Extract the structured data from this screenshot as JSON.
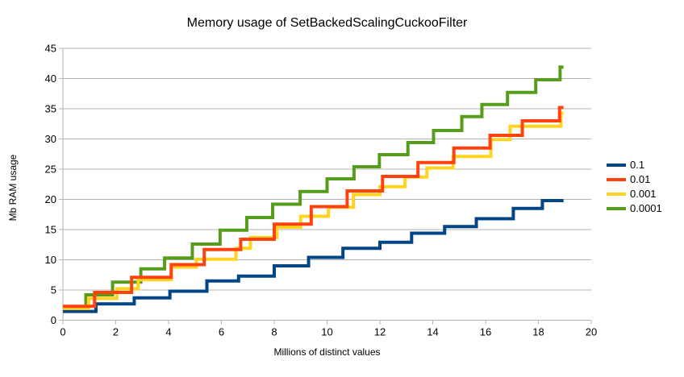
{
  "chart_data": {
    "type": "line",
    "step_style": "staircase",
    "title": "Memory usage of SetBackedScalingCuckooFilter",
    "xlabel": "Millions of distinct values",
    "ylabel": "Mb RAM usage",
    "xlim": [
      0,
      20
    ],
    "ylim": [
      0,
      45
    ],
    "x_ticks": [
      0,
      2,
      4,
      6,
      8,
      10,
      12,
      14,
      16,
      18,
      20
    ],
    "y_ticks": [
      0,
      5,
      10,
      15,
      20,
      25,
      30,
      35,
      40,
      45
    ],
    "grid": "horizontal-only",
    "axis_color": "#b3b3b3",
    "legend_position": "right",
    "x_end": 18.95,
    "series": [
      {
        "name": "0.1",
        "color": "#004586",
        "steps": [
          [
            0,
            1.45
          ],
          [
            1.25,
            2.7
          ],
          [
            2.7,
            3.7
          ],
          [
            4.05,
            4.8
          ],
          [
            5.45,
            6.5
          ],
          [
            6.65,
            7.3
          ],
          [
            8.0,
            9.0
          ],
          [
            9.3,
            10.4
          ],
          [
            10.6,
            11.9
          ],
          [
            12.0,
            12.9
          ],
          [
            13.2,
            14.4
          ],
          [
            14.45,
            15.5
          ],
          [
            15.65,
            16.8
          ],
          [
            17.05,
            18.5
          ],
          [
            18.15,
            19.8
          ]
        ]
      },
      {
        "name": "0.01",
        "color": "#FF420E",
        "steps": [
          [
            0,
            2.3
          ],
          [
            1.2,
            4.6
          ],
          [
            2.6,
            7.1
          ],
          [
            4.1,
            9.2
          ],
          [
            5.35,
            11.7
          ],
          [
            6.73,
            13.4
          ],
          [
            8.0,
            15.9
          ],
          [
            9.4,
            18.8
          ],
          [
            10.76,
            21.4
          ],
          [
            12.1,
            23.8
          ],
          [
            13.44,
            26.1
          ],
          [
            14.8,
            28.5
          ],
          [
            16.17,
            30.6
          ],
          [
            17.39,
            33.0
          ],
          [
            18.8,
            35.2
          ]
        ]
      },
      {
        "name": "0.001",
        "color": "#FFD320",
        "steps": [
          [
            0,
            1.95
          ],
          [
            0.97,
            3.6
          ],
          [
            2.04,
            5.2
          ],
          [
            2.85,
            6.7
          ],
          [
            4.1,
            8.8
          ],
          [
            5.05,
            10.1
          ],
          [
            6.55,
            11.9
          ],
          [
            7.1,
            13.7
          ],
          [
            8.1,
            15.4
          ],
          [
            9.0,
            17.2
          ],
          [
            10.05,
            18.7
          ],
          [
            11.0,
            20.8
          ],
          [
            12.0,
            22.1
          ],
          [
            12.95,
            23.7
          ],
          [
            13.78,
            25.2
          ],
          [
            14.77,
            27.1
          ],
          [
            16.2,
            29.9
          ],
          [
            16.93,
            32.1
          ],
          [
            18.85,
            34.3
          ]
        ]
      },
      {
        "name": "0.0001",
        "color": "#579D1C",
        "steps": [
          [
            0,
            2.1
          ],
          [
            0.87,
            4.2
          ],
          [
            1.88,
            6.3
          ],
          [
            2.95,
            8.5
          ],
          [
            3.85,
            10.3
          ],
          [
            4.9,
            12.6
          ],
          [
            5.95,
            14.9
          ],
          [
            6.96,
            17.0
          ],
          [
            7.94,
            19.2
          ],
          [
            8.98,
            21.3
          ],
          [
            10.0,
            23.4
          ],
          [
            11.02,
            25.4
          ],
          [
            11.98,
            27.4
          ],
          [
            13.06,
            29.4
          ],
          [
            14.03,
            31.4
          ],
          [
            15.1,
            33.7
          ],
          [
            15.86,
            35.7
          ],
          [
            16.83,
            37.7
          ],
          [
            17.9,
            39.8
          ],
          [
            18.82,
            41.9
          ]
        ]
      }
    ]
  }
}
